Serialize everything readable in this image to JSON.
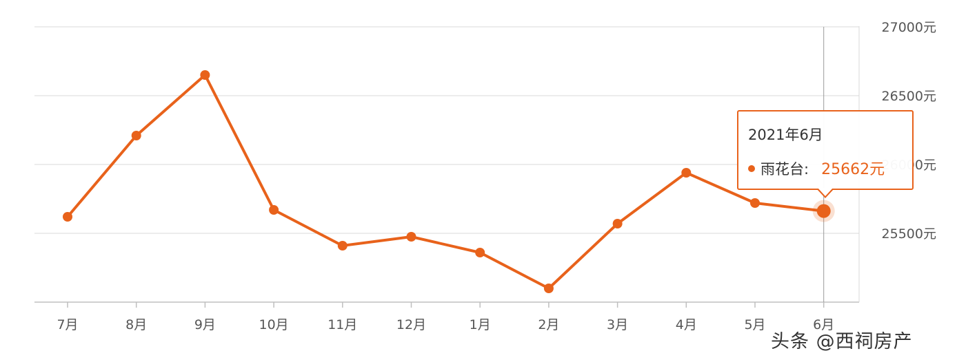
{
  "colors": {
    "line": "#e8621b",
    "grid": "#d9d9d9",
    "axis": "#bfbfbf",
    "text": "#555555"
  },
  "chart_data": {
    "type": "line",
    "categories": [
      "7月",
      "8月",
      "9月",
      "10月",
      "11月",
      "12月",
      "1月",
      "2月",
      "3月",
      "4月",
      "5月",
      "6月"
    ],
    "series": [
      {
        "name": "雨花台",
        "values": [
          25620,
          26210,
          26650,
          25670,
          25410,
          25475,
          25360,
          25100,
          25570,
          25940,
          25720,
          25662
        ]
      }
    ],
    "y_ticks": [
      {
        "value": 27000,
        "label": "27000元"
      },
      {
        "value": 26500,
        "label": "26500元"
      },
      {
        "value": 26000,
        "label": "26000元"
      },
      {
        "value": 25500,
        "label": "25500元"
      }
    ],
    "ylim": [
      25000,
      27000
    ],
    "grid": true,
    "highlight_index": 11,
    "tooltip": {
      "title": "2021年6月",
      "series_label": "雨花台:",
      "value_label": "25662元"
    }
  },
  "watermark": "头条 @西祠房产"
}
